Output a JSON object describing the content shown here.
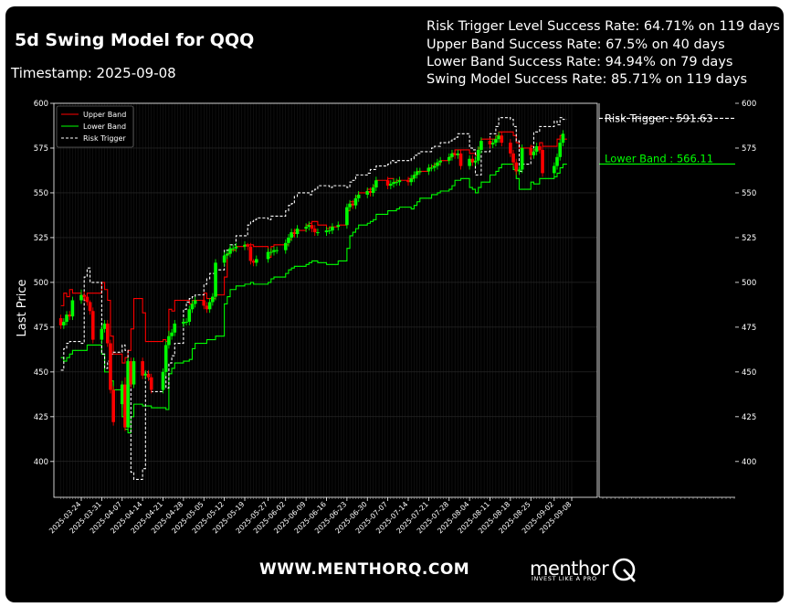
{
  "header": {
    "title": "5d Swing Model for QQQ",
    "timestamp": "Timestamp: 2025-09-08"
  },
  "stats": [
    "Risk Trigger Level Success Rate: 64.71% on 119 days",
    "Upper Band Success Rate: 67.5% on 40 days",
    "Lower Band Success Rate: 94.94% on 79 days",
    "Swing Model Success Rate: 85.71% on 119 days"
  ],
  "footer": {
    "website": "WWW.MENTHORQ.COM",
    "brand": "menthor",
    "tagline": "INVEST LIKE A PRO"
  },
  "colors": {
    "background": "#000000",
    "up_candle": "#00ff00",
    "down_candle": "#ff0000",
    "upper_band": "#ff0000",
    "lower_band": "#00ff00",
    "risk_trigger": "#ffffff"
  },
  "chart_data": {
    "type": "candlestick",
    "ylabel": "Last Price",
    "ylim": [
      380,
      600
    ],
    "yticks": [
      400,
      425,
      450,
      475,
      500,
      525,
      550,
      575,
      600
    ],
    "xticks": [
      "2025-03-24",
      "2025-03-31",
      "2025-04-07",
      "2025-04-14",
      "2025-04-21",
      "2025-04-28",
      "2025-05-05",
      "2025-05-12",
      "2025-05-19",
      "2025-05-27",
      "2025-06-02",
      "2025-06-09",
      "2025-06-16",
      "2025-06-23",
      "2025-06-30",
      "2025-07-07",
      "2025-07-14",
      "2025-07-21",
      "2025-07-28",
      "2025-08-04",
      "2025-08-11",
      "2025-08-18",
      "2025-08-25",
      "2025-09-02",
      "2025-09-08"
    ],
    "grid": true,
    "legend_position": "top-left",
    "legend": [
      "Upper Band",
      "Lower Band",
      "Risk Trigger"
    ],
    "dates": [
      "2025-03-17",
      "2025-03-18",
      "2025-03-19",
      "2025-03-20",
      "2025-03-21",
      "2025-03-24",
      "2025-03-25",
      "2025-03-26",
      "2025-03-27",
      "2025-03-28",
      "2025-03-31",
      "2025-04-01",
      "2025-04-02",
      "2025-04-03",
      "2025-04-04",
      "2025-04-07",
      "2025-04-08",
      "2025-04-09",
      "2025-04-10",
      "2025-04-11",
      "2025-04-14",
      "2025-04-15",
      "2025-04-16",
      "2025-04-17",
      "2025-04-21",
      "2025-04-22",
      "2025-04-23",
      "2025-04-24",
      "2025-04-25",
      "2025-04-28",
      "2025-04-29",
      "2025-04-30",
      "2025-05-01",
      "2025-05-02",
      "2025-05-05",
      "2025-05-06",
      "2025-05-07",
      "2025-05-08",
      "2025-05-09",
      "2025-05-12",
      "2025-05-13",
      "2025-05-14",
      "2025-05-15",
      "2025-05-16",
      "2025-05-19",
      "2025-05-20",
      "2025-05-21",
      "2025-05-22",
      "2025-05-23",
      "2025-05-27",
      "2025-05-28",
      "2025-05-29",
      "2025-05-30",
      "2025-06-02",
      "2025-06-03",
      "2025-06-04",
      "2025-06-05",
      "2025-06-06",
      "2025-06-09",
      "2025-06-10",
      "2025-06-11",
      "2025-06-12",
      "2025-06-13",
      "2025-06-16",
      "2025-06-17",
      "2025-06-18",
      "2025-06-20",
      "2025-06-23",
      "2025-06-24",
      "2025-06-25",
      "2025-06-26",
      "2025-06-27",
      "2025-06-30",
      "2025-07-01",
      "2025-07-02",
      "2025-07-03",
      "2025-07-07",
      "2025-07-08",
      "2025-07-09",
      "2025-07-10",
      "2025-07-11",
      "2025-07-14",
      "2025-07-15",
      "2025-07-16",
      "2025-07-17",
      "2025-07-18",
      "2025-07-21",
      "2025-07-22",
      "2025-07-23",
      "2025-07-24",
      "2025-07-25",
      "2025-07-28",
      "2025-07-29",
      "2025-07-30",
      "2025-07-31",
      "2025-08-01",
      "2025-08-04",
      "2025-08-05",
      "2025-08-06",
      "2025-08-07",
      "2025-08-08",
      "2025-08-11",
      "2025-08-12",
      "2025-08-13",
      "2025-08-14",
      "2025-08-15",
      "2025-08-18",
      "2025-08-19",
      "2025-08-20",
      "2025-08-21",
      "2025-08-22",
      "2025-08-25",
      "2025-08-26",
      "2025-08-27",
      "2025-08-28",
      "2025-08-29",
      "2025-09-02",
      "2025-09-03",
      "2025-09-04",
      "2025-09-05"
    ],
    "open": [
      480,
      476,
      478,
      482,
      481,
      490,
      493,
      492,
      489,
      484,
      468,
      474,
      477,
      466,
      440,
      432,
      443,
      419,
      456,
      443,
      456,
      448,
      449,
      447,
      440,
      450,
      465,
      470,
      472,
      477,
      478,
      478,
      485,
      488,
      490,
      487,
      485,
      489,
      492,
      511,
      515,
      516,
      519,
      519,
      520,
      521,
      520,
      512,
      511,
      513,
      517,
      517,
      518,
      518,
      522,
      525,
      528,
      527,
      530,
      531,
      532,
      530,
      528,
      528,
      529,
      529,
      531,
      532,
      542,
      544,
      543,
      547,
      549,
      551,
      550,
      553,
      557,
      554,
      555,
      556,
      556,
      557,
      556,
      558,
      560,
      562,
      562,
      564,
      564,
      565,
      567,
      568,
      570,
      572,
      571,
      572,
      565,
      569,
      567,
      568,
      574,
      579,
      577,
      578,
      580,
      582,
      578,
      572,
      567,
      562,
      563,
      575,
      571,
      573,
      576,
      574,
      561,
      565,
      570,
      578
    ],
    "close": [
      476,
      478,
      482,
      481,
      490,
      493,
      492,
      489,
      484,
      468,
      474,
      477,
      466,
      440,
      422,
      443,
      419,
      456,
      443,
      456,
      448,
      449,
      447,
      440,
      450,
      465,
      470,
      472,
      477,
      478,
      478,
      485,
      488,
      490,
      487,
      485,
      489,
      492,
      511,
      515,
      516,
      519,
      519,
      520,
      521,
      520,
      512,
      511,
      513,
      517,
      517,
      518,
      518,
      522,
      525,
      528,
      527,
      530,
      531,
      532,
      530,
      528,
      528,
      529,
      529,
      531,
      532,
      542,
      544,
      543,
      547,
      549,
      551,
      550,
      553,
      557,
      554,
      555,
      556,
      556,
      557,
      556,
      558,
      560,
      562,
      562,
      564,
      564,
      565,
      567,
      568,
      570,
      572,
      571,
      572,
      565,
      569,
      567,
      568,
      574,
      579,
      577,
      578,
      580,
      582,
      578,
      572,
      567,
      562,
      563,
      575,
      571,
      573,
      576,
      574,
      561,
      565,
      570,
      578,
      583
    ],
    "high": [
      482,
      480,
      484,
      484,
      492,
      496,
      495,
      493,
      490,
      486,
      476,
      479,
      479,
      468,
      442,
      445,
      447,
      458,
      458,
      458,
      458,
      451,
      451,
      449,
      452,
      467,
      473,
      474,
      479,
      480,
      480,
      487,
      490,
      492,
      492,
      489,
      491,
      494,
      513,
      517,
      518,
      521,
      521,
      522,
      523,
      522,
      522,
      513,
      515,
      519,
      519,
      520,
      520,
      524,
      527,
      530,
      530,
      532,
      533,
      534,
      534,
      532,
      530,
      531,
      531,
      533,
      534,
      544,
      546,
      546,
      549,
      551,
      553,
      553,
      555,
      559,
      559,
      557,
      558,
      558,
      559,
      559,
      560,
      562,
      564,
      564,
      566,
      566,
      567,
      569,
      570,
      572,
      574,
      574,
      574,
      574,
      571,
      571,
      570,
      576,
      581,
      581,
      580,
      582,
      584,
      584,
      580,
      574,
      569,
      565,
      577,
      577,
      575,
      578,
      578,
      576,
      567,
      572,
      580,
      585
    ],
    "low": [
      474,
      474,
      476,
      479,
      479,
      488,
      490,
      487,
      482,
      466,
      466,
      472,
      464,
      438,
      420,
      430,
      417,
      417,
      441,
      441,
      446,
      446,
      445,
      438,
      438,
      448,
      463,
      468,
      470,
      475,
      476,
      476,
      483,
      486,
      485,
      483,
      483,
      487,
      490,
      509,
      513,
      514,
      517,
      517,
      518,
      518,
      510,
      509,
      509,
      511,
      515,
      515,
      516,
      516,
      520,
      523,
      525,
      525,
      528,
      529,
      528,
      526,
      526,
      526,
      527,
      527,
      529,
      530,
      540,
      541,
      541,
      545,
      547,
      548,
      548,
      551,
      552,
      552,
      553,
      554,
      554,
      554,
      554,
      556,
      558,
      560,
      560,
      562,
      562,
      563,
      565,
      566,
      568,
      569,
      569,
      563,
      563,
      565,
      565,
      566,
      572,
      575,
      575,
      576,
      578,
      576,
      570,
      565,
      560,
      560,
      561,
      569,
      569,
      571,
      572,
      559,
      559,
      563,
      568,
      576
    ],
    "upper_band": [
      487,
      494,
      492,
      496,
      494,
      492,
      490,
      494,
      494,
      494,
      500,
      496,
      490,
      470,
      460,
      455,
      458,
      462,
      474,
      491,
      483,
      467,
      467,
      467,
      468,
      467,
      485,
      484,
      490,
      490,
      490,
      488,
      490,
      490,
      494,
      491,
      491,
      491,
      493,
      503,
      516,
      518,
      518,
      520,
      521,
      521,
      521,
      520,
      520,
      514,
      520,
      521,
      521,
      521,
      524,
      526,
      529,
      529,
      532,
      533,
      534,
      534,
      532,
      530,
      531,
      531,
      532,
      540,
      545,
      545,
      548,
      550,
      552,
      552,
      554,
      557,
      558,
      558,
      556,
      557,
      557,
      558,
      558,
      560,
      562,
      562,
      564,
      565,
      566,
      566,
      568,
      570,
      572,
      574,
      574,
      574,
      572,
      572,
      571,
      575,
      580,
      580,
      580,
      582,
      584,
      584,
      584,
      582,
      578,
      575,
      575,
      576,
      574,
      574,
      578,
      576,
      576,
      580,
      582,
      580
    ],
    "lower_band": [
      458,
      456,
      458,
      460,
      462,
      462,
      462,
      465,
      465,
      465,
      460,
      450,
      450,
      445,
      440,
      425,
      418,
      416,
      425,
      432,
      431,
      431,
      431,
      430,
      430,
      429,
      449,
      452,
      455,
      456,
      456,
      457,
      463,
      466,
      466,
      468,
      468,
      468,
      470,
      488,
      492,
      496,
      496,
      498,
      499,
      499,
      500,
      499,
      499,
      500,
      502,
      503,
      503,
      505,
      507,
      508,
      509,
      509,
      510,
      511,
      512,
      512,
      511,
      510,
      510,
      510,
      512,
      519,
      526,
      528,
      530,
      532,
      533,
      534,
      535,
      538,
      540,
      540,
      540,
      541,
      542,
      542,
      541,
      543,
      545,
      547,
      547,
      549,
      549,
      550,
      551,
      552,
      554,
      557,
      557,
      558,
      553,
      552,
      550,
      553,
      556,
      560,
      560,
      562,
      564,
      566,
      566,
      563,
      558,
      552,
      552,
      556,
      555,
      555,
      558,
      558,
      559,
      561,
      564,
      566
    ],
    "risk_trigger": [
      451,
      463,
      466,
      467,
      467,
      466,
      503,
      508,
      500,
      500,
      460,
      452,
      456,
      460,
      461,
      465,
      462,
      451,
      394,
      390,
      396,
      450,
      446,
      439,
      448,
      441,
      455,
      459,
      466,
      485,
      489,
      491,
      492,
      493,
      499,
      502,
      505,
      505,
      507,
      518,
      518,
      521,
      521,
      526,
      526,
      532,
      534,
      535,
      536,
      535,
      537,
      537,
      537,
      540,
      543,
      544,
      548,
      550,
      550,
      549,
      551,
      552,
      554,
      554,
      553,
      554,
      554,
      553,
      556,
      557,
      560,
      560,
      561,
      563,
      563,
      565,
      566,
      568,
      567,
      568,
      568,
      568,
      569,
      571,
      572,
      573,
      573,
      575,
      576,
      576,
      578,
      579,
      580,
      581,
      583,
      583,
      575,
      574,
      560,
      560,
      573,
      583,
      583,
      587,
      592,
      592,
      591,
      587,
      579,
      562,
      566,
      572,
      584,
      584,
      587,
      587,
      590,
      588,
      592,
      591
    ]
  },
  "right_panel": {
    "risk_trigger": {
      "label": "Risk Trigger : 591.63",
      "value": 591.63
    },
    "lower_band": {
      "label": "Lower Band : 566.11",
      "value": 566.11
    }
  }
}
